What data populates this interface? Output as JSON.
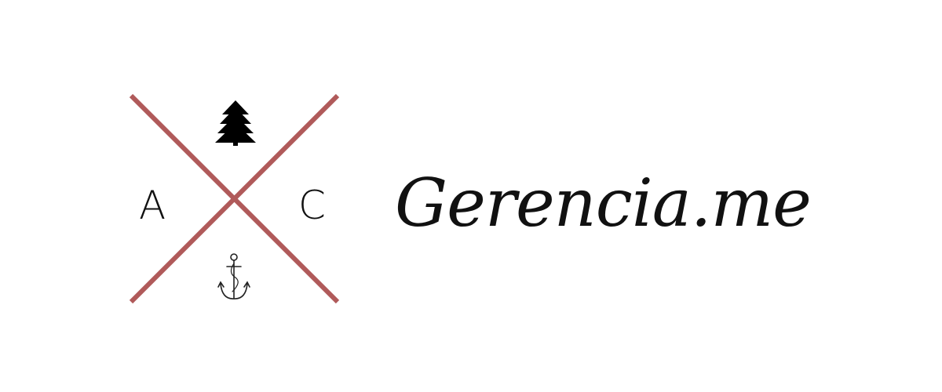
{
  "logo": {
    "initial_left": "A",
    "initial_right": "C",
    "brand_name": "Gerencia.me",
    "cross_color": "#b05a5a",
    "top_icon": "tree-icon",
    "bottom_icon": "anchor-icon"
  }
}
